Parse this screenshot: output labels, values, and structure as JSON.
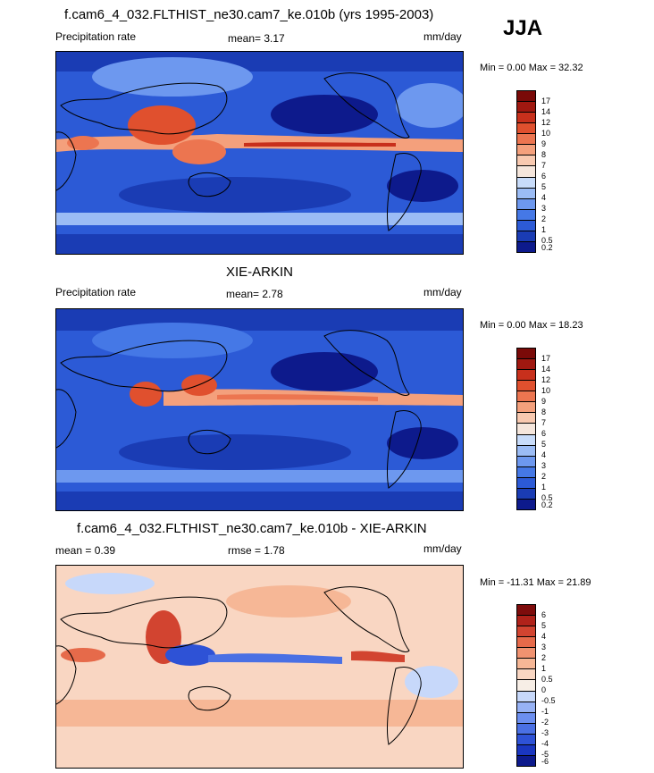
{
  "season": "JJA",
  "palette": {
    "precip": [
      "#0d1a8c",
      "#1a3cb4",
      "#2c5ad6",
      "#4578e6",
      "#6d98ef",
      "#9bbcf5",
      "#c8dcfa",
      "#f5e6dc",
      "#f8c9b0",
      "#f4a07c",
      "#ec7550",
      "#e0502e",
      "#c8301c",
      "#a01810",
      "#7a0a08"
    ],
    "diff": [
      "#0d1a8c",
      "#1a36c0",
      "#2e52d6",
      "#4a70e4",
      "#6c8ff0",
      "#97b2f5",
      "#c7d8fa",
      "#f7eee6",
      "#f9d6c2",
      "#f6b796",
      "#f09270",
      "#e66a4a",
      "#d24430",
      "#b0221a",
      "#7e0c0c"
    ]
  },
  "panels": [
    {
      "title": "f.cam6_4_032.FLTHIST_ne30.cam7_ke.010b (yrs 1995-2003)",
      "left_label": "Precipitation rate",
      "center_label": "mean=   3.17",
      "right_label": "mm/day",
      "minmax": "Min =   0.00 Max =  32.32",
      "levels": [
        "17",
        "14",
        "12",
        "10",
        "9",
        "8",
        "7",
        "6",
        "5",
        "4",
        "3",
        "2",
        "1",
        "0.5",
        "0.2"
      ]
    },
    {
      "title": "XIE-ARKIN",
      "left_label": "Precipitation rate",
      "center_label": "mean=   2.78",
      "right_label": "mm/day",
      "minmax": "Min =   0.00 Max =  18.23",
      "levels": [
        "17",
        "14",
        "12",
        "10",
        "9",
        "8",
        "7",
        "6",
        "5",
        "4",
        "3",
        "2",
        "1",
        "0.5",
        "0.2"
      ]
    },
    {
      "title": "f.cam6_4_032.FLTHIST_ne30.cam7_ke.010b - XIE-ARKIN",
      "left_label": "mean =   0.39",
      "center_label": "rmse =   1.78",
      "right_label": "mm/day",
      "minmax": "Min = -11.31 Max =  21.89",
      "levels": [
        "6",
        "5",
        "4",
        "3",
        "2",
        "1",
        "0.5",
        "0",
        "-0.5",
        "-1",
        "-2",
        "-3",
        "-4",
        "-5",
        "-6"
      ]
    }
  ]
}
